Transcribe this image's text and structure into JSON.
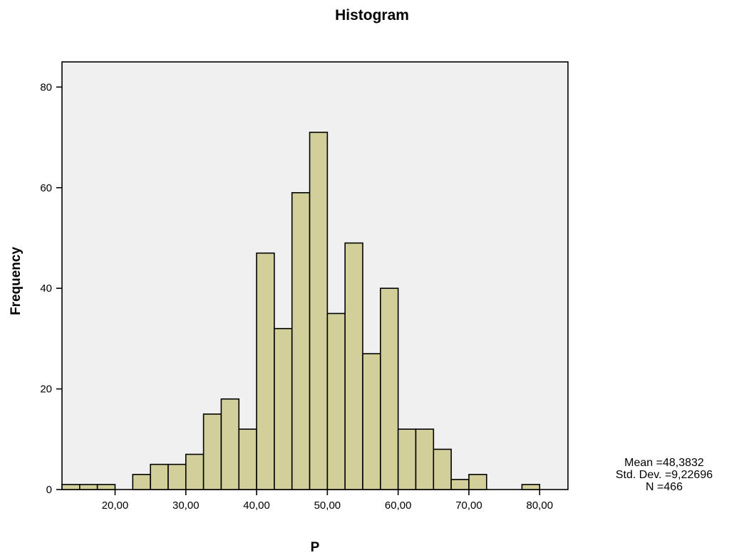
{
  "chart_data": {
    "type": "bar",
    "title": "Histogram",
    "xlabel": "P",
    "ylabel": "Frequency",
    "xlim": [
      12.5,
      84.0
    ],
    "ylim": [
      0,
      85
    ],
    "x_ticks": [
      20,
      30,
      40,
      50,
      60,
      70,
      80
    ],
    "x_tick_labels": [
      "20,00",
      "30,00",
      "40,00",
      "50,00",
      "60,00",
      "70,00",
      "80,00"
    ],
    "y_ticks": [
      0,
      20,
      40,
      60,
      80
    ],
    "y_tick_labels": [
      "0",
      "20",
      "40",
      "60",
      "80"
    ],
    "bin_width": 2.5,
    "bin_starts": [
      12.5,
      15,
      17.5,
      20,
      22.5,
      25,
      27.5,
      30,
      32.5,
      35,
      37.5,
      40,
      42.5,
      45,
      47.5,
      50,
      52.5,
      55,
      57.5,
      60,
      62.5,
      65,
      67.5,
      70,
      72.5,
      75,
      77.5
    ],
    "values": [
      1,
      1,
      1,
      0,
      3,
      5,
      5,
      7,
      15,
      18,
      12,
      47,
      32,
      59,
      71,
      35,
      49,
      27,
      40,
      12,
      12,
      8,
      2,
      3,
      0,
      0,
      1
    ],
    "bar_color": "#d3cf9b",
    "plot_background": "#f0f0f0",
    "grid": false,
    "legend": "none",
    "stats": {
      "mean": "Mean =48,3832",
      "std_dev": "Std. Dev. =9,22696",
      "n": "N =466"
    }
  }
}
